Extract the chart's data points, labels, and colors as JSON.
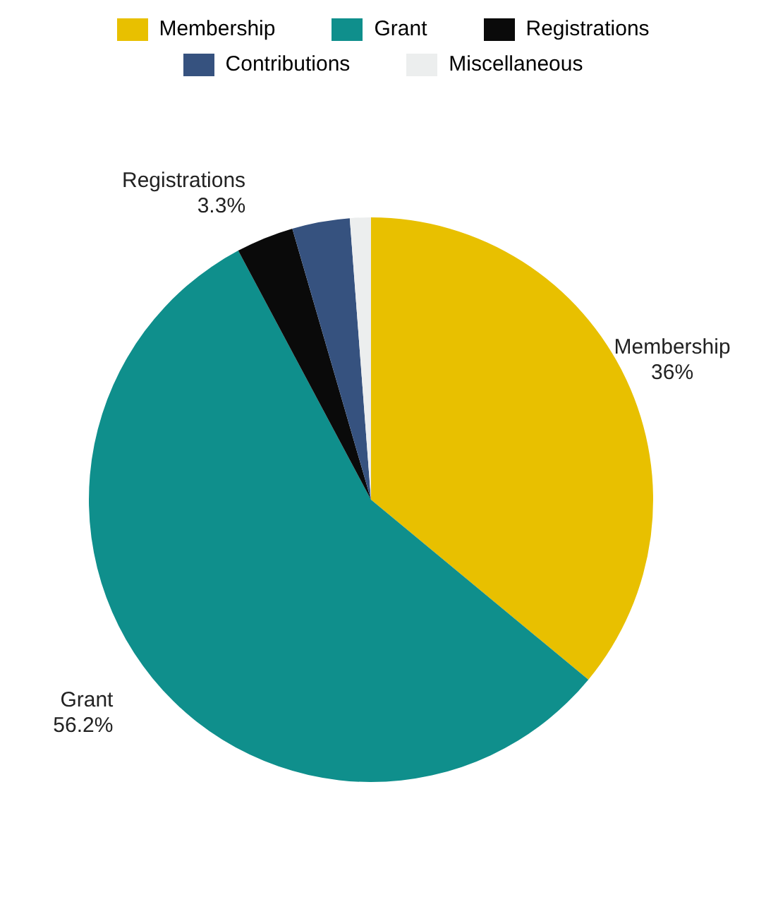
{
  "chart_data": {
    "type": "pie",
    "categories": [
      "Membership",
      "Grant",
      "Registrations",
      "Contributions",
      "Miscellaneous"
    ],
    "values": [
      36,
      56.2,
      3.3,
      3.3,
      1.2
    ],
    "colors": [
      "#e8c000",
      "#0f8f8c",
      "#0a0a0a",
      "#36527f",
      "#eceeee"
    ],
    "value_labels": [
      "36%",
      "56.2%",
      "3.3%",
      null,
      null
    ],
    "legend": "top"
  }
}
